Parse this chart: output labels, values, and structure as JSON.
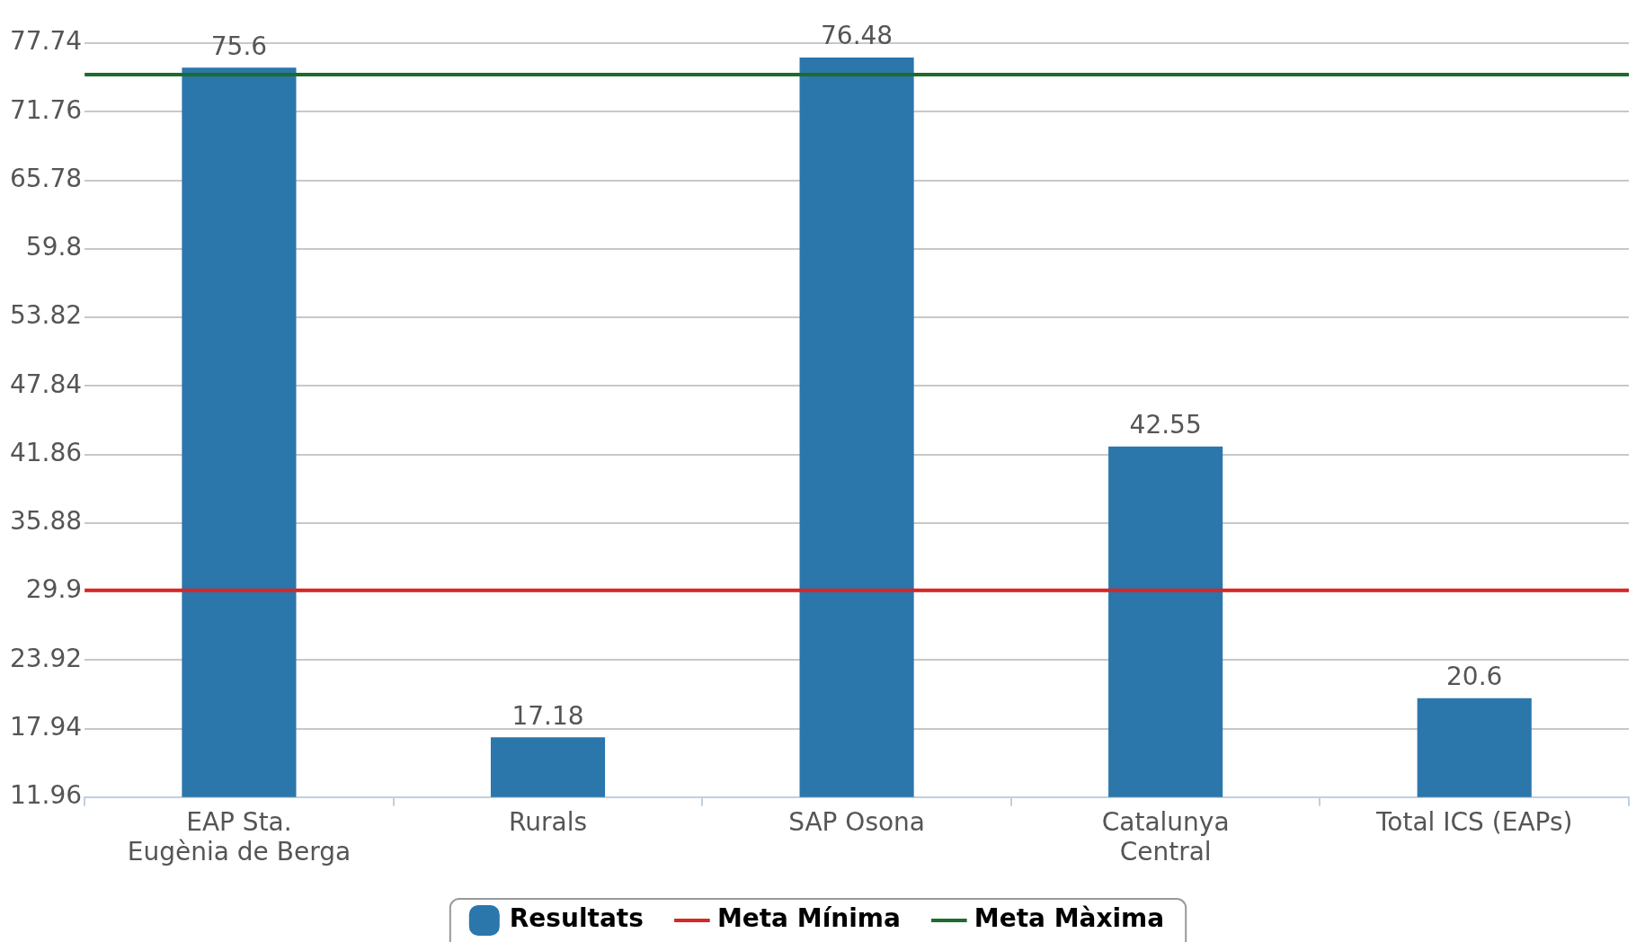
{
  "chart_data": {
    "type": "bar",
    "categories": [
      "EAP Sta. Eugènia de Berga",
      "Rurals",
      "SAP Osona",
      "Catalunya Central",
      "Total ICS (EAPs)"
    ],
    "series": [
      {
        "name": "Resultats",
        "color": "#2b76ab",
        "values": [
          75.6,
          17.18,
          76.48,
          42.55,
          20.6
        ]
      }
    ],
    "ylim": [
      11.96,
      77.74
    ],
    "yticks": [
      11.96,
      17.94,
      23.92,
      29.9,
      35.88,
      41.86,
      47.84,
      53.82,
      59.8,
      65.78,
      71.76,
      77.74
    ],
    "ref_lines": [
      {
        "axis": "y",
        "value": 30,
        "label": "Meta Mínima",
        "color": "#d62728"
      },
      {
        "axis": "y",
        "value": 75,
        "label": "Meta Màxima",
        "color": "#1e6b2e"
      }
    ],
    "data_labels": true,
    "grid": "y",
    "legend": "bottom"
  }
}
